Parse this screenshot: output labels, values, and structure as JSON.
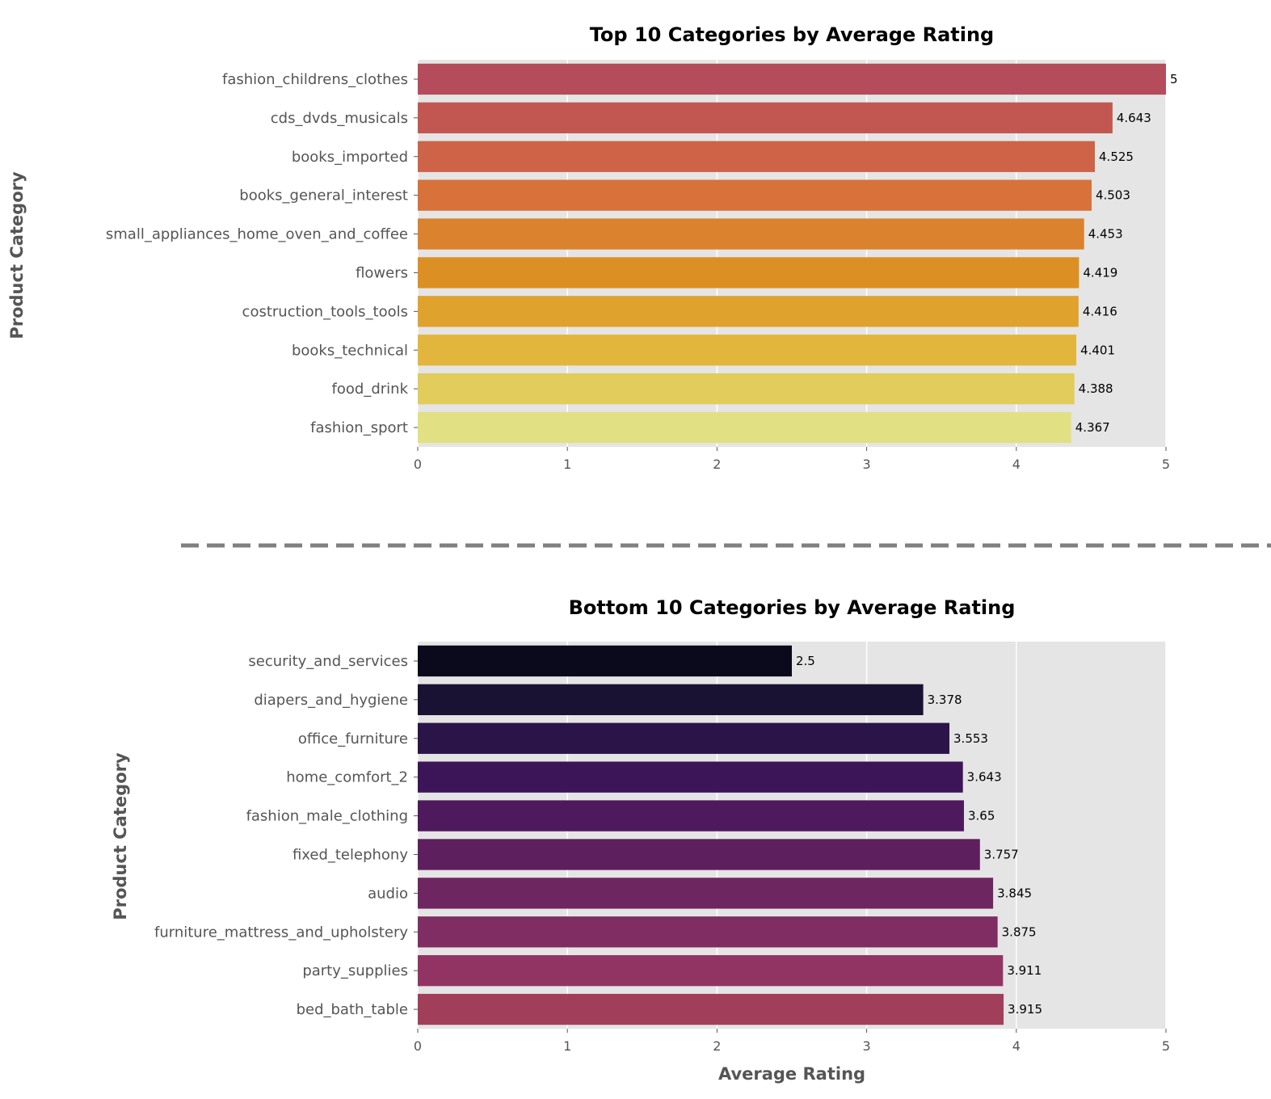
{
  "chart_data": [
    {
      "type": "bar",
      "orientation": "horizontal",
      "title": "Top 10 Categories by Average Rating",
      "xlabel": "",
      "ylabel": "Product Category",
      "xlim": [
        0,
        5
      ],
      "x_ticks": [
        "0",
        "1",
        "2",
        "3",
        "4",
        "5"
      ],
      "grid": true,
      "categories": [
        "fashion_childrens_clothes",
        "cds_dvds_musicals",
        "books_imported",
        "books_general_interest",
        "small_appliances_home_oven_and_coffee",
        "flowers",
        "costruction_tools_tools",
        "books_technical",
        "food_drink",
        "fashion_sport"
      ],
      "values": [
        5,
        4.643,
        4.525,
        4.503,
        4.453,
        4.419,
        4.416,
        4.401,
        4.388,
        4.367
      ],
      "value_labels": [
        "5",
        "4.643",
        "4.525",
        "4.503",
        "4.453",
        "4.419",
        "4.416",
        "4.401",
        "4.388",
        "4.367"
      ],
      "colors": [
        "#b44c5b",
        "#c25752",
        "#cd6347",
        "#d6723a",
        "#da822e",
        "#dc9023",
        "#dfa22d",
        "#e2b53c",
        "#e1cc5c",
        "#e1e083"
      ]
    },
    {
      "type": "bar",
      "orientation": "horizontal",
      "title": "Bottom 10 Categories by Average Rating",
      "xlabel": "Average Rating",
      "ylabel": "Product Category",
      "xlim": [
        0,
        5
      ],
      "x_ticks": [
        "0",
        "1",
        "2",
        "3",
        "4",
        "5"
      ],
      "grid": true,
      "categories": [
        "security_and_services",
        "diapers_and_hygiene",
        "office_furniture",
        "home_comfort_2",
        "fashion_male_clothing",
        "fixed_telephony",
        "audio",
        "furniture_mattress_and_upholstery",
        "party_supplies",
        "bed_bath_table"
      ],
      "values": [
        2.5,
        3.378,
        3.553,
        3.643,
        3.65,
        3.757,
        3.845,
        3.875,
        3.911,
        3.915
      ],
      "value_labels": [
        "2.5",
        "3.378",
        "3.553",
        "3.643",
        "3.65",
        "3.757",
        "3.845",
        "3.875",
        "3.911",
        "3.915"
      ],
      "colors": [
        "#0b0a1c",
        "#1a1232",
        "#2b1448",
        "#3c1558",
        "#4e195d",
        "#5e1f5e",
        "#6e2661",
        "#802d63",
        "#923463",
        "#a13f5b"
      ]
    }
  ],
  "style": {
    "plot_background": "#e5e5e5",
    "grid_color": "#ffffff",
    "separator_color": "#808080"
  }
}
